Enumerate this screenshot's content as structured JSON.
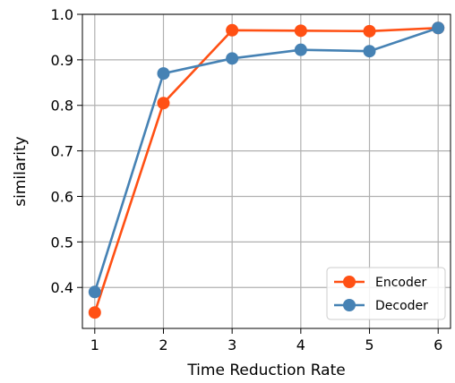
{
  "chart_data": {
    "type": "line",
    "title": "",
    "xlabel": "Time Reduction Rate",
    "ylabel": "similarity",
    "x": [
      1,
      2,
      3,
      4,
      5,
      6
    ],
    "x_ticks": [
      "1",
      "2",
      "3",
      "4",
      "5",
      "6"
    ],
    "y_ticks": [
      "0.4",
      "0.5",
      "0.6",
      "0.7",
      "0.8",
      "0.9",
      "1.0"
    ],
    "xlim": [
      0.82,
      6.18
    ],
    "ylim": [
      0.31,
      1.0
    ],
    "grid": true,
    "legend_position": "lower-right",
    "series": [
      {
        "name": "Encoder",
        "color": "#ff5014",
        "values": [
          0.345,
          0.805,
          0.965,
          0.964,
          0.963,
          0.97
        ]
      },
      {
        "name": "Decoder",
        "color": "#4682b4",
        "values": [
          0.39,
          0.87,
          0.903,
          0.922,
          0.919,
          0.97
        ]
      }
    ]
  }
}
